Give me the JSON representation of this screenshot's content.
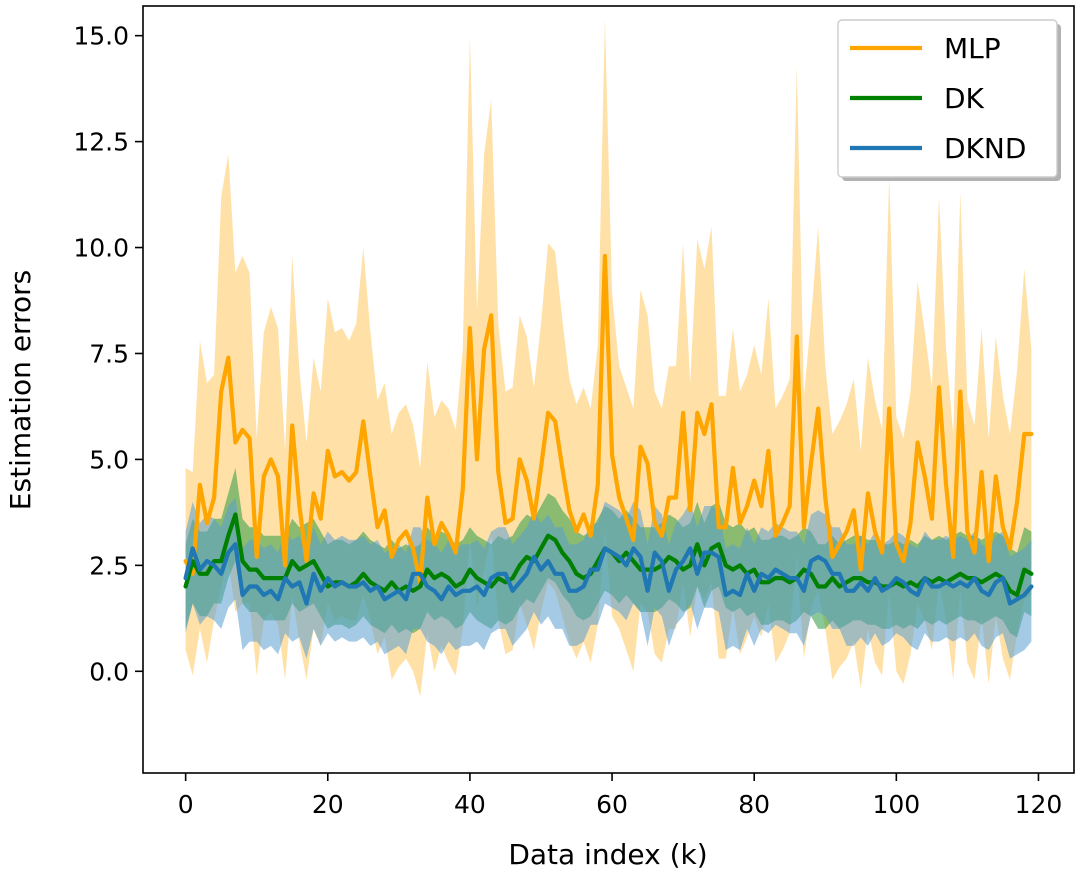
{
  "chart_data": {
    "type": "line",
    "title": "",
    "xlabel": "Data index (k)",
    "ylabel": "Estimation errors",
    "xlim": [
      -6,
      125
    ],
    "ylim": [
      -2.4,
      15.7
    ],
    "xticks": [
      0,
      20,
      40,
      60,
      80,
      100,
      120
    ],
    "yticks": [
      0.0,
      2.5,
      5.0,
      7.5,
      10.0,
      12.5,
      15.0
    ],
    "xtick_labels": [
      "0",
      "20",
      "40",
      "60",
      "80",
      "100",
      "120"
    ],
    "ytick_labels": [
      "0.0",
      "2.5",
      "5.0",
      "7.5",
      "10.0",
      "12.5",
      "15.0"
    ],
    "grid": false,
    "legend_position": "top-right",
    "x": [
      0,
      1,
      2,
      3,
      4,
      5,
      6,
      7,
      8,
      9,
      10,
      11,
      12,
      13,
      14,
      15,
      16,
      17,
      18,
      19,
      20,
      21,
      22,
      23,
      24,
      25,
      26,
      27,
      28,
      29,
      30,
      31,
      32,
      33,
      34,
      35,
      36,
      37,
      38,
      39,
      40,
      41,
      42,
      43,
      44,
      45,
      46,
      47,
      48,
      49,
      50,
      51,
      52,
      53,
      54,
      55,
      56,
      57,
      58,
      59,
      60,
      61,
      62,
      63,
      64,
      65,
      66,
      67,
      68,
      69,
      70,
      71,
      72,
      73,
      74,
      75,
      76,
      77,
      78,
      79,
      80,
      81,
      82,
      83,
      84,
      85,
      86,
      87,
      88,
      89,
      90,
      91,
      92,
      93,
      94,
      95,
      96,
      97,
      98,
      99,
      100,
      101,
      102,
      103,
      104,
      105,
      106,
      107,
      108,
      109,
      110,
      111,
      112,
      113,
      114,
      115,
      116,
      117,
      118,
      119
    ],
    "series": [
      {
        "name": "MLP",
        "color": "#ffa500",
        "band_color": "#ffc861",
        "values": [
          2.6,
          2.3,
          4.4,
          3.5,
          4.1,
          6.6,
          7.4,
          5.4,
          5.7,
          5.5,
          2.7,
          4.6,
          5.0,
          4.6,
          2.5,
          5.8,
          3.9,
          2.6,
          4.2,
          3.6,
          5.2,
          4.6,
          4.7,
          4.5,
          4.7,
          5.9,
          4.6,
          3.4,
          3.8,
          2.7,
          3.1,
          3.3,
          2.9,
          2.1,
          4.1,
          3.0,
          3.5,
          3.2,
          2.8,
          4.3,
          8.1,
          5.0,
          7.6,
          8.4,
          4.7,
          3.5,
          3.6,
          5.0,
          4.5,
          3.6,
          4.8,
          6.1,
          5.9,
          4.8,
          3.8,
          3.3,
          3.7,
          3.2,
          4.4,
          9.8,
          5.1,
          4.1,
          3.6,
          3.1,
          5.3,
          4.9,
          3.5,
          3.2,
          4.1,
          4.1,
          6.1,
          3.8,
          6.1,
          5.6,
          6.3,
          3.4,
          3.4,
          4.8,
          3.5,
          3.9,
          4.5,
          3.9,
          5.2,
          3.2,
          3.5,
          3.9,
          7.9,
          3.4,
          4.9,
          6.2,
          4.1,
          2.7,
          3.0,
          3.3,
          3.8,
          2.4,
          4.2,
          3.3,
          2.8,
          6.2,
          3.0,
          2.6,
          3.5,
          5.4,
          4.6,
          3.6,
          6.7,
          4.4,
          2.7,
          6.6,
          3.3,
          2.8,
          4.7,
          2.6,
          4.6,
          3.4,
          2.9,
          4.0,
          5.6,
          5.6
        ],
        "lower": [
          0.5,
          -0.1,
          1.0,
          0.2,
          1.2,
          2.0,
          2.6,
          1.4,
          1.6,
          1.6,
          -0.1,
          1.2,
          1.4,
          1.1,
          -0.2,
          1.8,
          0.7,
          -0.2,
          1.0,
          0.6,
          1.6,
          1.2,
          1.3,
          1.2,
          1.2,
          1.8,
          1.2,
          0.4,
          0.8,
          -0.2,
          0.1,
          0.3,
          0.0,
          -0.6,
          0.9,
          0.0,
          0.6,
          0.2,
          -0.1,
          1.0,
          3.1,
          1.5,
          2.4,
          3.2,
          1.2,
          0.4,
          0.5,
          1.6,
          1.1,
          0.5,
          1.4,
          2.1,
          1.9,
          1.3,
          0.7,
          0.3,
          0.7,
          0.2,
          1.1,
          3.3,
          1.3,
          1.0,
          0.5,
          0.0,
          1.6,
          1.4,
          0.4,
          0.2,
          1.0,
          1.0,
          2.1,
          0.8,
          2.0,
          1.7,
          2.1,
          0.3,
          0.3,
          1.5,
          0.4,
          0.8,
          1.3,
          0.8,
          1.6,
          0.2,
          0.5,
          0.9,
          2.7,
          0.3,
          1.5,
          1.9,
          1.0,
          -0.2,
          0.1,
          0.3,
          0.7,
          -0.4,
          1.0,
          0.2,
          -0.1,
          1.9,
          0.0,
          -0.3,
          0.4,
          1.6,
          1.2,
          0.5,
          2.1,
          1.2,
          -0.2,
          1.9,
          0.2,
          -0.2,
          1.3,
          -0.3,
          1.3,
          0.3,
          -0.2,
          0.9,
          1.7,
          1.8
        ],
        "upper": [
          4.8,
          4.7,
          7.8,
          6.8,
          7.0,
          11.2,
          12.2,
          9.4,
          9.8,
          9.4,
          5.5,
          8.0,
          8.6,
          8.1,
          5.2,
          9.8,
          7.1,
          5.4,
          7.4,
          6.6,
          8.8,
          8.0,
          8.1,
          7.8,
          8.2,
          10.0,
          8.0,
          6.4,
          6.8,
          5.6,
          6.1,
          6.3,
          5.8,
          4.8,
          7.3,
          6.0,
          6.4,
          6.2,
          5.7,
          7.6,
          15.0,
          8.5,
          12.2,
          13.5,
          8.2,
          6.6,
          6.7,
          8.4,
          7.9,
          6.7,
          8.2,
          10.1,
          9.9,
          8.3,
          6.9,
          6.3,
          6.7,
          6.2,
          7.7,
          15.4,
          8.9,
          7.2,
          6.7,
          6.2,
          9.0,
          8.4,
          6.6,
          6.2,
          7.2,
          7.2,
          10.1,
          6.8,
          10.2,
          9.5,
          10.5,
          6.5,
          6.5,
          8.1,
          6.6,
          7.0,
          7.7,
          7.0,
          8.8,
          6.2,
          6.5,
          6.9,
          14.3,
          6.5,
          8.3,
          10.5,
          7.2,
          5.6,
          5.9,
          6.3,
          6.9,
          5.2,
          7.4,
          6.4,
          5.7,
          11.7,
          6.0,
          5.5,
          6.6,
          9.2,
          8.0,
          6.7,
          11.2,
          7.6,
          5.6,
          11.3,
          6.4,
          5.8,
          8.1,
          5.5,
          7.9,
          6.5,
          5.6,
          7.1,
          9.5,
          7.6
        ]
      },
      {
        "name": "DK",
        "color": "#008000",
        "band_color": "#2c9a44",
        "values": [
          2.0,
          2.6,
          2.3,
          2.3,
          2.6,
          2.6,
          3.2,
          3.7,
          2.6,
          2.4,
          2.4,
          2.2,
          2.2,
          2.2,
          2.2,
          2.6,
          2.4,
          2.5,
          2.6,
          2.3,
          2.0,
          2.1,
          2.1,
          2.0,
          2.1,
          2.3,
          2.1,
          2.0,
          1.9,
          2.1,
          1.9,
          2.0,
          1.9,
          2.0,
          2.4,
          2.2,
          2.3,
          2.2,
          2.0,
          2.1,
          2.4,
          2.2,
          2.1,
          2.0,
          2.2,
          2.1,
          2.2,
          2.5,
          2.7,
          2.6,
          2.9,
          3.2,
          3.1,
          2.8,
          2.6,
          2.3,
          2.2,
          2.3,
          2.6,
          2.9,
          2.8,
          2.6,
          2.8,
          2.6,
          2.4,
          2.4,
          2.4,
          2.5,
          2.7,
          2.6,
          2.4,
          2.5,
          3.0,
          2.5,
          2.9,
          3.0,
          2.5,
          2.4,
          2.5,
          2.3,
          2.4,
          2.1,
          2.1,
          2.2,
          2.2,
          2.1,
          2.2,
          2.4,
          2.3,
          2.0,
          2.0,
          2.2,
          2.0,
          2.1,
          2.2,
          2.2,
          2.1,
          2.1,
          2.0,
          2.0,
          2.1,
          2.0,
          2.1,
          2.0,
          2.2,
          2.1,
          2.2,
          2.1,
          2.2,
          2.3,
          2.2,
          2.2,
          2.1,
          2.2,
          2.3,
          2.2,
          1.9,
          1.8,
          2.4,
          2.3
        ],
        "lower": [
          1.0,
          1.6,
          1.3,
          1.3,
          1.6,
          1.6,
          2.2,
          2.6,
          1.6,
          1.4,
          1.4,
          1.2,
          1.2,
          1.2,
          1.2,
          1.6,
          1.4,
          1.5,
          1.6,
          1.3,
          1.0,
          1.1,
          1.1,
          1.0,
          1.1,
          1.3,
          1.1,
          1.0,
          0.9,
          1.1,
          0.9,
          1.0,
          0.9,
          1.0,
          1.4,
          1.2,
          1.3,
          1.2,
          1.0,
          1.1,
          1.4,
          1.2,
          1.1,
          1.0,
          1.2,
          1.1,
          1.2,
          1.5,
          1.7,
          1.6,
          1.9,
          2.2,
          2.1,
          1.8,
          1.6,
          1.3,
          1.2,
          1.3,
          1.6,
          1.9,
          1.8,
          1.6,
          1.8,
          1.6,
          1.4,
          1.4,
          1.4,
          1.5,
          1.7,
          1.6,
          1.4,
          1.5,
          2.0,
          1.5,
          1.9,
          2.0,
          1.5,
          1.4,
          1.5,
          1.3,
          1.4,
          1.1,
          1.1,
          1.2,
          1.2,
          1.1,
          1.2,
          1.4,
          1.3,
          1.0,
          1.0,
          1.2,
          1.0,
          1.1,
          1.2,
          1.2,
          1.1,
          1.1,
          1.0,
          1.0,
          1.1,
          1.0,
          1.1,
          1.0,
          1.2,
          1.1,
          1.2,
          1.1,
          1.2,
          1.3,
          1.2,
          1.2,
          1.1,
          1.2,
          1.3,
          1.2,
          0.9,
          0.8,
          1.4,
          1.3
        ],
        "upper": [
          3.0,
          3.6,
          3.3,
          3.3,
          3.6,
          3.6,
          4.2,
          4.8,
          3.6,
          3.4,
          3.4,
          3.2,
          3.2,
          3.2,
          3.2,
          3.6,
          3.4,
          3.5,
          3.6,
          3.3,
          3.0,
          3.1,
          3.1,
          3.0,
          3.1,
          3.3,
          3.1,
          3.0,
          2.9,
          3.1,
          2.9,
          3.0,
          2.9,
          3.0,
          3.4,
          3.2,
          3.3,
          3.2,
          3.0,
          3.1,
          3.4,
          3.2,
          3.1,
          3.0,
          3.2,
          3.1,
          3.2,
          3.5,
          3.7,
          3.6,
          3.9,
          4.2,
          4.1,
          3.8,
          3.6,
          3.3,
          3.2,
          3.3,
          3.6,
          3.9,
          3.8,
          3.6,
          3.8,
          3.6,
          3.4,
          3.4,
          3.4,
          3.5,
          3.7,
          3.6,
          3.4,
          3.5,
          4.0,
          3.5,
          3.9,
          4.0,
          3.5,
          3.4,
          3.5,
          3.3,
          3.4,
          3.1,
          3.1,
          3.2,
          3.2,
          3.1,
          3.2,
          3.4,
          3.3,
          3.0,
          3.0,
          3.2,
          3.0,
          3.1,
          3.2,
          3.2,
          3.1,
          3.1,
          3.0,
          3.0,
          3.1,
          3.0,
          3.1,
          3.0,
          3.2,
          3.1,
          3.2,
          3.1,
          3.2,
          3.3,
          3.2,
          3.2,
          3.1,
          3.2,
          3.3,
          3.2,
          2.9,
          2.8,
          3.4,
          3.3
        ]
      },
      {
        "name": "DKND",
        "color": "#1f77b4",
        "band_color": "#5a9fd0",
        "values": [
          2.2,
          2.9,
          2.4,
          2.6,
          2.5,
          2.3,
          2.8,
          3.0,
          1.8,
          2.0,
          2.0,
          1.8,
          1.9,
          1.7,
          2.2,
          2.0,
          2.1,
          1.6,
          2.3,
          1.9,
          2.2,
          2.0,
          2.1,
          2.0,
          2.0,
          2.1,
          1.9,
          2.0,
          1.7,
          1.8,
          1.9,
          1.7,
          2.3,
          2.3,
          2.0,
          1.9,
          1.7,
          2.0,
          1.8,
          1.9,
          1.9,
          2.0,
          1.8,
          2.2,
          2.3,
          2.3,
          1.9,
          2.1,
          2.3,
          2.7,
          2.4,
          2.6,
          2.3,
          2.3,
          1.9,
          1.9,
          2.0,
          2.4,
          2.4,
          2.9,
          2.8,
          2.7,
          2.5,
          2.9,
          2.7,
          1.9,
          2.8,
          2.6,
          1.9,
          2.4,
          2.6,
          2.9,
          2.3,
          2.8,
          2.8,
          2.7,
          1.8,
          1.9,
          1.8,
          2.3,
          1.9,
          2.3,
          2.2,
          2.4,
          2.3,
          2.2,
          2.2,
          1.9,
          2.6,
          2.7,
          2.6,
          2.3,
          2.3,
          1.9,
          1.9,
          2.1,
          1.9,
          2.2,
          1.9,
          2.0,
          2.2,
          2.1,
          1.9,
          1.8,
          2.2,
          2.0,
          2.0,
          2.1,
          2.0,
          2.1,
          2.0,
          2.2,
          1.9,
          1.8,
          2.1,
          2.2,
          1.6,
          1.7,
          1.8,
          2.0
        ],
        "lower": [
          0.9,
          1.6,
          1.1,
          1.3,
          1.2,
          1.0,
          1.5,
          1.7,
          0.5,
          0.7,
          0.7,
          0.5,
          0.6,
          0.4,
          0.9,
          0.7,
          0.8,
          0.3,
          1.0,
          0.6,
          0.9,
          0.7,
          0.8,
          0.7,
          0.7,
          0.8,
          0.6,
          0.7,
          0.4,
          0.5,
          0.6,
          0.4,
          1.0,
          1.0,
          0.7,
          0.6,
          0.4,
          0.7,
          0.5,
          0.6,
          0.6,
          0.7,
          0.5,
          0.9,
          1.0,
          1.0,
          0.6,
          0.8,
          1.0,
          1.4,
          1.1,
          1.3,
          1.0,
          1.0,
          0.6,
          0.6,
          0.7,
          1.1,
          1.1,
          1.6,
          1.5,
          1.4,
          1.2,
          1.6,
          1.4,
          0.6,
          1.5,
          1.3,
          0.6,
          1.1,
          1.3,
          1.6,
          1.0,
          1.5,
          1.5,
          1.4,
          0.5,
          0.6,
          0.5,
          1.0,
          0.6,
          1.0,
          0.9,
          1.1,
          1.0,
          0.9,
          0.9,
          0.6,
          1.3,
          1.4,
          1.3,
          1.0,
          1.0,
          0.6,
          0.6,
          0.8,
          0.6,
          0.9,
          0.6,
          0.7,
          0.9,
          0.8,
          0.6,
          0.5,
          0.9,
          0.7,
          0.7,
          0.8,
          0.7,
          0.8,
          0.7,
          0.9,
          0.6,
          0.5,
          0.8,
          0.9,
          0.3,
          0.4,
          0.5,
          0.7
        ],
        "upper": [
          3.3,
          4.0,
          3.5,
          3.7,
          3.6,
          3.4,
          3.9,
          4.1,
          2.9,
          3.1,
          3.1,
          2.9,
          3.0,
          2.8,
          3.3,
          3.1,
          3.2,
          2.7,
          3.4,
          3.0,
          3.3,
          3.1,
          3.2,
          3.1,
          3.1,
          3.2,
          3.0,
          3.1,
          2.8,
          2.9,
          3.0,
          2.8,
          3.4,
          3.4,
          3.1,
          3.0,
          2.8,
          3.1,
          2.9,
          3.0,
          3.0,
          3.1,
          2.9,
          3.3,
          3.4,
          3.4,
          3.0,
          3.2,
          3.4,
          3.8,
          3.5,
          3.7,
          3.4,
          3.4,
          3.0,
          3.0,
          3.1,
          3.5,
          3.5,
          4.0,
          3.9,
          3.8,
          3.6,
          4.0,
          3.8,
          3.0,
          3.9,
          3.7,
          3.0,
          3.5,
          3.7,
          4.0,
          3.4,
          3.9,
          3.9,
          3.8,
          2.9,
          3.0,
          2.9,
          3.4,
          3.0,
          3.4,
          3.3,
          3.5,
          3.4,
          3.3,
          3.3,
          3.0,
          3.7,
          3.8,
          3.7,
          3.4,
          3.4,
          3.0,
          3.0,
          3.2,
          3.0,
          3.3,
          3.0,
          3.1,
          3.3,
          3.2,
          3.0,
          2.9,
          3.3,
          3.1,
          3.1,
          3.2,
          3.1,
          3.2,
          3.1,
          3.3,
          3.0,
          2.9,
          3.2,
          3.3,
          2.7,
          2.8,
          2.9,
          3.1
        ]
      }
    ]
  }
}
